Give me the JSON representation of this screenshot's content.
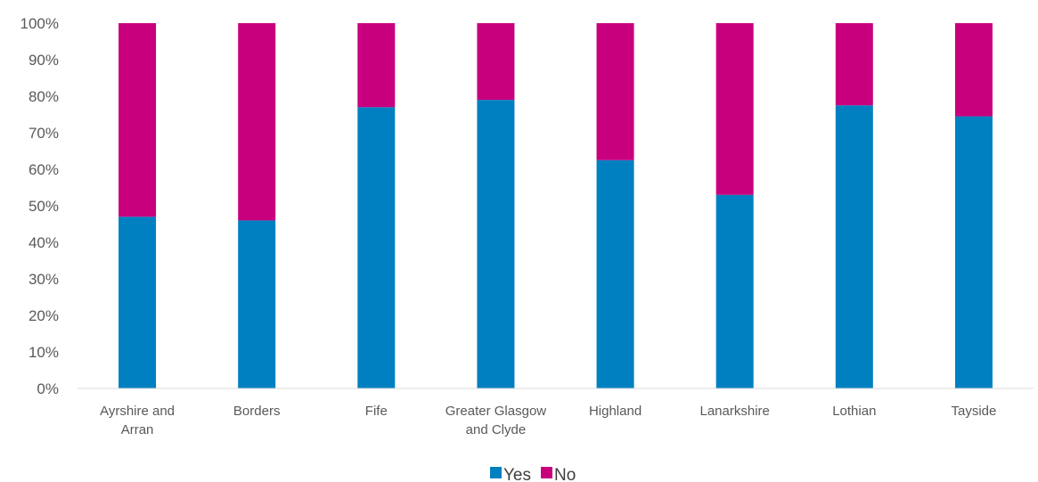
{
  "chart_data": {
    "type": "bar",
    "stacked": true,
    "percent_stacked": true,
    "categories": [
      [
        "Ayrshire and",
        "Arran"
      ],
      [
        "Borders"
      ],
      [
        "Fife"
      ],
      [
        "Greater Glasgow",
        "and Clyde"
      ],
      [
        "Highland"
      ],
      [
        "Lanarkshire"
      ],
      [
        "Lothian"
      ],
      [
        "Tayside"
      ]
    ],
    "series": [
      {
        "name": "Yes",
        "color": "#0080C0",
        "values": [
          47,
          46,
          77,
          79,
          62.5,
          53,
          77.5,
          74.5
        ]
      },
      {
        "name": "No",
        "color": "#C8007E",
        "values": [
          53,
          54,
          23,
          21,
          37.5,
          47,
          22.5,
          25.5
        ]
      }
    ],
    "ylim": [
      0,
      100
    ],
    "yticks": [
      "0%",
      "10%",
      "20%",
      "30%",
      "40%",
      "50%",
      "60%",
      "70%",
      "80%",
      "90%",
      "100%"
    ],
    "grid": false,
    "legend_position": "bottom"
  }
}
